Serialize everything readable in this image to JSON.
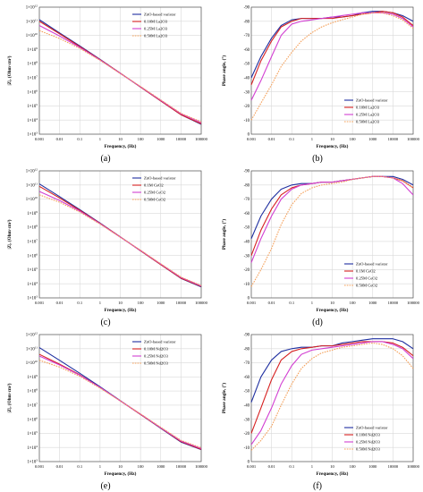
{
  "chart_data": [
    {
      "id": "a",
      "type": "line",
      "panel_label": "(a)",
      "xlabel": "Frequency, (Hz)",
      "ylabel": "|Z|, (Ohm·cm²)",
      "xscale": "log",
      "yscale": "log",
      "xlim": [
        0.001,
        100000
      ],
      "ylim": [
        1000.0,
        1000000000000.0
      ],
      "x_ticks": [
        0.001,
        0.01,
        0.1,
        1,
        10,
        100,
        1000,
        10000,
        100000
      ],
      "x_tick_labels": [
        "0.001",
        "0.01",
        "0.1",
        "1",
        "10",
        "100",
        "1000",
        "10000",
        "100000"
      ],
      "y_ticks": [
        1000.0,
        10000.0,
        100000.0,
        1000000.0,
        10000000.0,
        100000000.0,
        1000000000.0,
        10000000000.0,
        100000000000.0,
        1000000000000.0
      ],
      "y_tick_labels": [
        "1×10^3",
        "1×10^4",
        "1×10^5",
        "1×10^6",
        "1×10^7",
        "1×10^8",
        "1×10^9",
        "1×10^10",
        "1×10^11",
        "1×10^12"
      ],
      "grid": true,
      "legend_position": "top-right",
      "x": [
        0.001,
        0.01,
        0.1,
        1,
        10,
        100,
        1000,
        10000,
        100000
      ],
      "series": [
        {
          "name": "ZnO-based varistor",
          "color": "#1f2fa0",
          "values": [
            130000000000.0,
            15000000000.0,
            1800000000.0,
            200000000.0,
            21000000.0,
            2200000.0,
            230000.0,
            24000.0,
            5000.0
          ]
        },
        {
          "name": "0.10M La2O3",
          "color": "#d62020",
          "values": [
            100000000000.0,
            13000000000.0,
            1600000000.0,
            190000000.0,
            21000000.0,
            2200000.0,
            230000.0,
            24000.0,
            5500.0
          ]
        },
        {
          "name": "0.25M La2O3",
          "color": "#d23fd2",
          "values": [
            50000000000.0,
            9000000000.0,
            1400000000.0,
            180000000.0,
            20000000.0,
            2300000.0,
            250000.0,
            28000.0,
            6500.0
          ]
        },
        {
          "name": "0.50M La2O3",
          "color": "#f4a05a",
          "values": [
            22000000000.0,
            6000000000.0,
            1200000000.0,
            170000000.0,
            20000000.0,
            2400000.0,
            270000.0,
            30000.0,
            7500.0
          ]
        }
      ]
    },
    {
      "id": "b",
      "type": "line",
      "panel_label": "(b)",
      "xlabel": "Frequency, (Hz)",
      "ylabel": "Phase angle, (°)",
      "xscale": "log",
      "yscale": "linear",
      "xlim": [
        0.001,
        100000
      ],
      "ylim": [
        0,
        -90
      ],
      "x_ticks": [
        0.001,
        0.01,
        0.1,
        1,
        10,
        100,
        1000,
        10000,
        100000
      ],
      "x_tick_labels": [
        "0.001",
        "0.01",
        "0.1",
        "1",
        "10",
        "100",
        "1000",
        "10000",
        "100000"
      ],
      "y_ticks": [
        0,
        -10,
        -20,
        -30,
        -40,
        -50,
        -60,
        -70,
        -80,
        -90
      ],
      "y_tick_labels": [
        "0",
        "-10",
        "-20",
        "-30",
        "-40",
        "-50",
        "-60",
        "-70",
        "-80",
        "-90"
      ],
      "grid": true,
      "legend_position": "bottom-right",
      "x": [
        0.001,
        0.003,
        0.01,
        0.03,
        0.1,
        0.3,
        1,
        3,
        10,
        30,
        100,
        300,
        1000,
        3000,
        10000,
        30000,
        100000
      ],
      "series": [
        {
          "name": "ZnO-based varistor",
          "color": "#1f2fa0",
          "values": [
            -40,
            -55,
            -68,
            -77,
            -81,
            -82,
            -82,
            -82,
            -83,
            -83,
            -84,
            -86,
            -87,
            -87,
            -86,
            -84,
            -80
          ]
        },
        {
          "name": "0.10M La2O3",
          "color": "#d62020",
          "values": [
            -35,
            -52,
            -66,
            -76,
            -80,
            -82,
            -82,
            -82,
            -82,
            -83,
            -84,
            -85,
            -86,
            -87,
            -86,
            -83,
            -77
          ]
        },
        {
          "name": "0.25M La2O3",
          "color": "#d23fd2",
          "values": [
            -24,
            -38,
            -55,
            -70,
            -78,
            -80,
            -81,
            -82,
            -83,
            -84,
            -85,
            -86,
            -86,
            -86,
            -85,
            -82,
            -76
          ]
        },
        {
          "name": "0.50M La2O3",
          "color": "#f4a05a",
          "values": [
            -10,
            -22,
            -35,
            -48,
            -58,
            -66,
            -72,
            -76,
            -79,
            -81,
            -83,
            -85,
            -86,
            -86,
            -84,
            -81,
            -75
          ]
        }
      ]
    },
    {
      "id": "c",
      "type": "line",
      "panel_label": "(c)",
      "xlabel": "Frequency, (Hz)",
      "ylabel": "|Z|, (Ohm·cm²)",
      "xscale": "log",
      "yscale": "log",
      "xlim": [
        0.001,
        100000
      ],
      "ylim": [
        1000.0,
        1000000000000.0
      ],
      "x_ticks": [
        0.001,
        0.01,
        0.1,
        1,
        10,
        100,
        1000,
        10000,
        100000
      ],
      "x_tick_labels": [
        "0.001",
        "0.01",
        "0.1",
        "1",
        "10",
        "100",
        "1000",
        "10000",
        "100000"
      ],
      "y_ticks": [
        1000.0,
        10000.0,
        100000.0,
        1000000.0,
        10000000.0,
        100000000.0,
        1000000000.0,
        10000000000.0,
        100000000000.0,
        1000000000000.0
      ],
      "y_tick_labels": [
        "1×10^3",
        "1×10^4",
        "1×10^5",
        "1×10^6",
        "1×10^7",
        "1×10^8",
        "1×10^9",
        "1×10^10",
        "1×10^11",
        "1×10^12"
      ],
      "grid": true,
      "legend_position": "top-right",
      "x": [
        0.001,
        0.01,
        0.1,
        1,
        10,
        100,
        1000,
        10000,
        100000
      ],
      "series": [
        {
          "name": "ZnO-based varistor",
          "color": "#1f2fa0",
          "values": [
            120000000000.0,
            15000000000.0,
            1800000000.0,
            200000000.0,
            21000000.0,
            2200000.0,
            230000.0,
            24000.0,
            6000.0
          ]
        },
        {
          "name": "0.1M CeO2",
          "color": "#d62020",
          "values": [
            80000000000.0,
            12000000000.0,
            1600000000.0,
            190000000.0,
            21000000.0,
            2200000.0,
            230000.0,
            25000.0,
            6500.0
          ]
        },
        {
          "name": "0.25M CeO2",
          "color": "#d23fd2",
          "values": [
            35000000000.0,
            8000000000.0,
            1400000000.0,
            180000000.0,
            20000000.0,
            2300000.0,
            250000.0,
            28000.0,
            7000.0
          ]
        },
        {
          "name": "0.50M CeO2",
          "color": "#f4a05a",
          "values": [
            20000000000.0,
            6000000000.0,
            1200000000.0,
            170000000.0,
            20000000.0,
            2400000.0,
            260000.0,
            30000.0,
            7500.0
          ]
        }
      ]
    },
    {
      "id": "d",
      "type": "line",
      "panel_label": "(d)",
      "xlabel": "Frequency, (Hz)",
      "ylabel": "Phase angle, (°)",
      "xscale": "log",
      "yscale": "linear",
      "xlim": [
        0.001,
        100000
      ],
      "ylim": [
        0,
        -90
      ],
      "x_ticks": [
        0.001,
        0.01,
        0.1,
        1,
        10,
        100,
        1000,
        10000,
        100000
      ],
      "x_tick_labels": [
        "0.001",
        "0.01",
        "0.1",
        "1",
        "10",
        "100",
        "1000",
        "10000",
        "100000"
      ],
      "y_ticks": [
        0,
        -10,
        -20,
        -30,
        -40,
        -50,
        -60,
        -70,
        -80,
        -90
      ],
      "y_tick_labels": [
        "0",
        "-10",
        "-20",
        "-30",
        "-40",
        "-50",
        "-60",
        "-70",
        "-80",
        "-90"
      ],
      "grid": true,
      "legend_position": "bottom-right",
      "x": [
        0.001,
        0.003,
        0.01,
        0.03,
        0.1,
        0.3,
        1,
        3,
        10,
        30,
        100,
        300,
        1000,
        3000,
        10000,
        30000,
        100000
      ],
      "series": [
        {
          "name": "ZnO-based varistor",
          "color": "#1f2fa0",
          "values": [
            -42,
            -58,
            -70,
            -77,
            -80,
            -81,
            -81,
            -82,
            -82,
            -83,
            -84,
            -85,
            -86,
            -86,
            -86,
            -84,
            -80
          ]
        },
        {
          "name": "0.1M CeO2",
          "color": "#d62020",
          "values": [
            -30,
            -48,
            -63,
            -73,
            -78,
            -80,
            -81,
            -82,
            -82,
            -83,
            -84,
            -85,
            -86,
            -86,
            -85,
            -83,
            -78
          ]
        },
        {
          "name": "0.25M CeO2",
          "color": "#d23fd2",
          "values": [
            -25,
            -42,
            -58,
            -70,
            -77,
            -80,
            -81,
            -82,
            -82,
            -83,
            -84,
            -85,
            -86,
            -86,
            -85,
            -81,
            -73
          ]
        },
        {
          "name": "0.50M CeO2",
          "color": "#f4a05a",
          "values": [
            -8,
            -20,
            -35,
            -52,
            -66,
            -74,
            -78,
            -80,
            -81,
            -82,
            -84,
            -85,
            -86,
            -86,
            -85,
            -83,
            -78
          ]
        }
      ]
    },
    {
      "id": "e",
      "type": "line",
      "panel_label": "(e)",
      "xlabel": "Frequency, (Hz)",
      "ylabel": "|Z|, (Ohm·cm²)",
      "xscale": "log",
      "yscale": "log",
      "xlim": [
        0.001,
        100000
      ],
      "ylim": [
        1000.0,
        1000000000000.0
      ],
      "x_ticks": [
        0.001,
        0.01,
        0.1,
        1,
        10,
        100,
        1000,
        10000,
        100000
      ],
      "x_tick_labels": [
        "0.001",
        "0.01",
        "0.1",
        "1",
        "10",
        "100",
        "1000",
        "10000",
        "100000"
      ],
      "y_ticks": [
        1000.0,
        10000.0,
        100000.0,
        1000000.0,
        10000000.0,
        100000000.0,
        1000000000.0,
        10000000000.0,
        100000000000.0,
        1000000000000.0
      ],
      "y_tick_labels": [
        "1×10^3",
        "1×10^4",
        "1×10^5",
        "1×10^6",
        "1×10^7",
        "1×10^8",
        "1×10^9",
        "1×10^10",
        "1×10^11",
        "1×10^12"
      ],
      "grid": true,
      "legend_position": "top-right",
      "x": [
        0.001,
        0.01,
        0.1,
        1,
        10,
        100,
        1000,
        10000,
        100000
      ],
      "series": [
        {
          "name": "ZnO-based varistor",
          "color": "#1f2fa0",
          "values": [
            120000000000.0,
            15000000000.0,
            1800000000.0,
            200000000.0,
            21000000.0,
            2200000.0,
            230000.0,
            24000.0,
            7000.0
          ]
        },
        {
          "name": "0.10M Nd2O3",
          "color": "#d62020",
          "values": [
            40000000000.0,
            8000000000.0,
            1400000000.0,
            180000000.0,
            20000000.0,
            2200000.0,
            240000.0,
            26000.0,
            7500.0
          ]
        },
        {
          "name": "0.25M Nd2O3",
          "color": "#d23fd2",
          "values": [
            30000000000.0,
            7000000000.0,
            1300000000.0,
            180000000.0,
            20000000.0,
            2300000.0,
            250000.0,
            29000.0,
            8500.0
          ]
        },
        {
          "name": "0.50M Nd2O3",
          "color": "#f4a05a",
          "values": [
            15000000000.0,
            5000000000.0,
            1100000000.0,
            160000000.0,
            20000000.0,
            2400000.0,
            270000.0,
            32000.0,
            9500.0
          ]
        }
      ]
    },
    {
      "id": "f",
      "type": "line",
      "panel_label": "(f)",
      "xlabel": "Frequency, (Hz)",
      "ylabel": "Phase angle, (°)",
      "xscale": "log",
      "yscale": "linear",
      "xlim": [
        0.001,
        100000
      ],
      "ylim": [
        0,
        -90
      ],
      "x_ticks": [
        0.001,
        0.01,
        0.1,
        1,
        10,
        100,
        1000,
        10000,
        100000
      ],
      "x_tick_labels": [
        "0.001",
        "0.01",
        "0.1",
        "1",
        "10",
        "100",
        "1000",
        "10000",
        "100000"
      ],
      "y_ticks": [
        0,
        -10,
        -20,
        -30,
        -40,
        -50,
        -60,
        -70,
        -80,
        -90
      ],
      "y_tick_labels": [
        "0",
        "-10",
        "-20",
        "-30",
        "-40",
        "-50",
        "-60",
        "-70",
        "-80",
        "-90"
      ],
      "grid": true,
      "legend_position": "bottom-right",
      "x": [
        0.001,
        0.003,
        0.01,
        0.03,
        0.1,
        0.3,
        1,
        3,
        10,
        30,
        100,
        300,
        1000,
        3000,
        10000,
        30000,
        100000
      ],
      "series": [
        {
          "name": "ZnO-based varistor",
          "color": "#1f2fa0",
          "values": [
            -42,
            -60,
            -72,
            -78,
            -80,
            -81,
            -81,
            -82,
            -82,
            -84,
            -85,
            -86,
            -87,
            -87,
            -87,
            -85,
            -80
          ]
        },
        {
          "name": "0.10M Nd2O3",
          "color": "#d62020",
          "values": [
            -20,
            -38,
            -58,
            -72,
            -78,
            -80,
            -81,
            -82,
            -82,
            -83,
            -84,
            -85,
            -85,
            -85,
            -84,
            -81,
            -75
          ]
        },
        {
          "name": "0.25M Nd2O3",
          "color": "#d23fd2",
          "values": [
            -12,
            -22,
            -38,
            -55,
            -68,
            -76,
            -79,
            -80,
            -81,
            -82,
            -83,
            -84,
            -85,
            -85,
            -83,
            -80,
            -73
          ]
        },
        {
          "name": "0.50M Nd2O3",
          "color": "#f4a05a",
          "values": [
            -8,
            -15,
            -25,
            -40,
            -55,
            -66,
            -73,
            -77,
            -79,
            -81,
            -82,
            -83,
            -84,
            -83,
            -80,
            -75,
            -66
          ]
        }
      ]
    }
  ]
}
